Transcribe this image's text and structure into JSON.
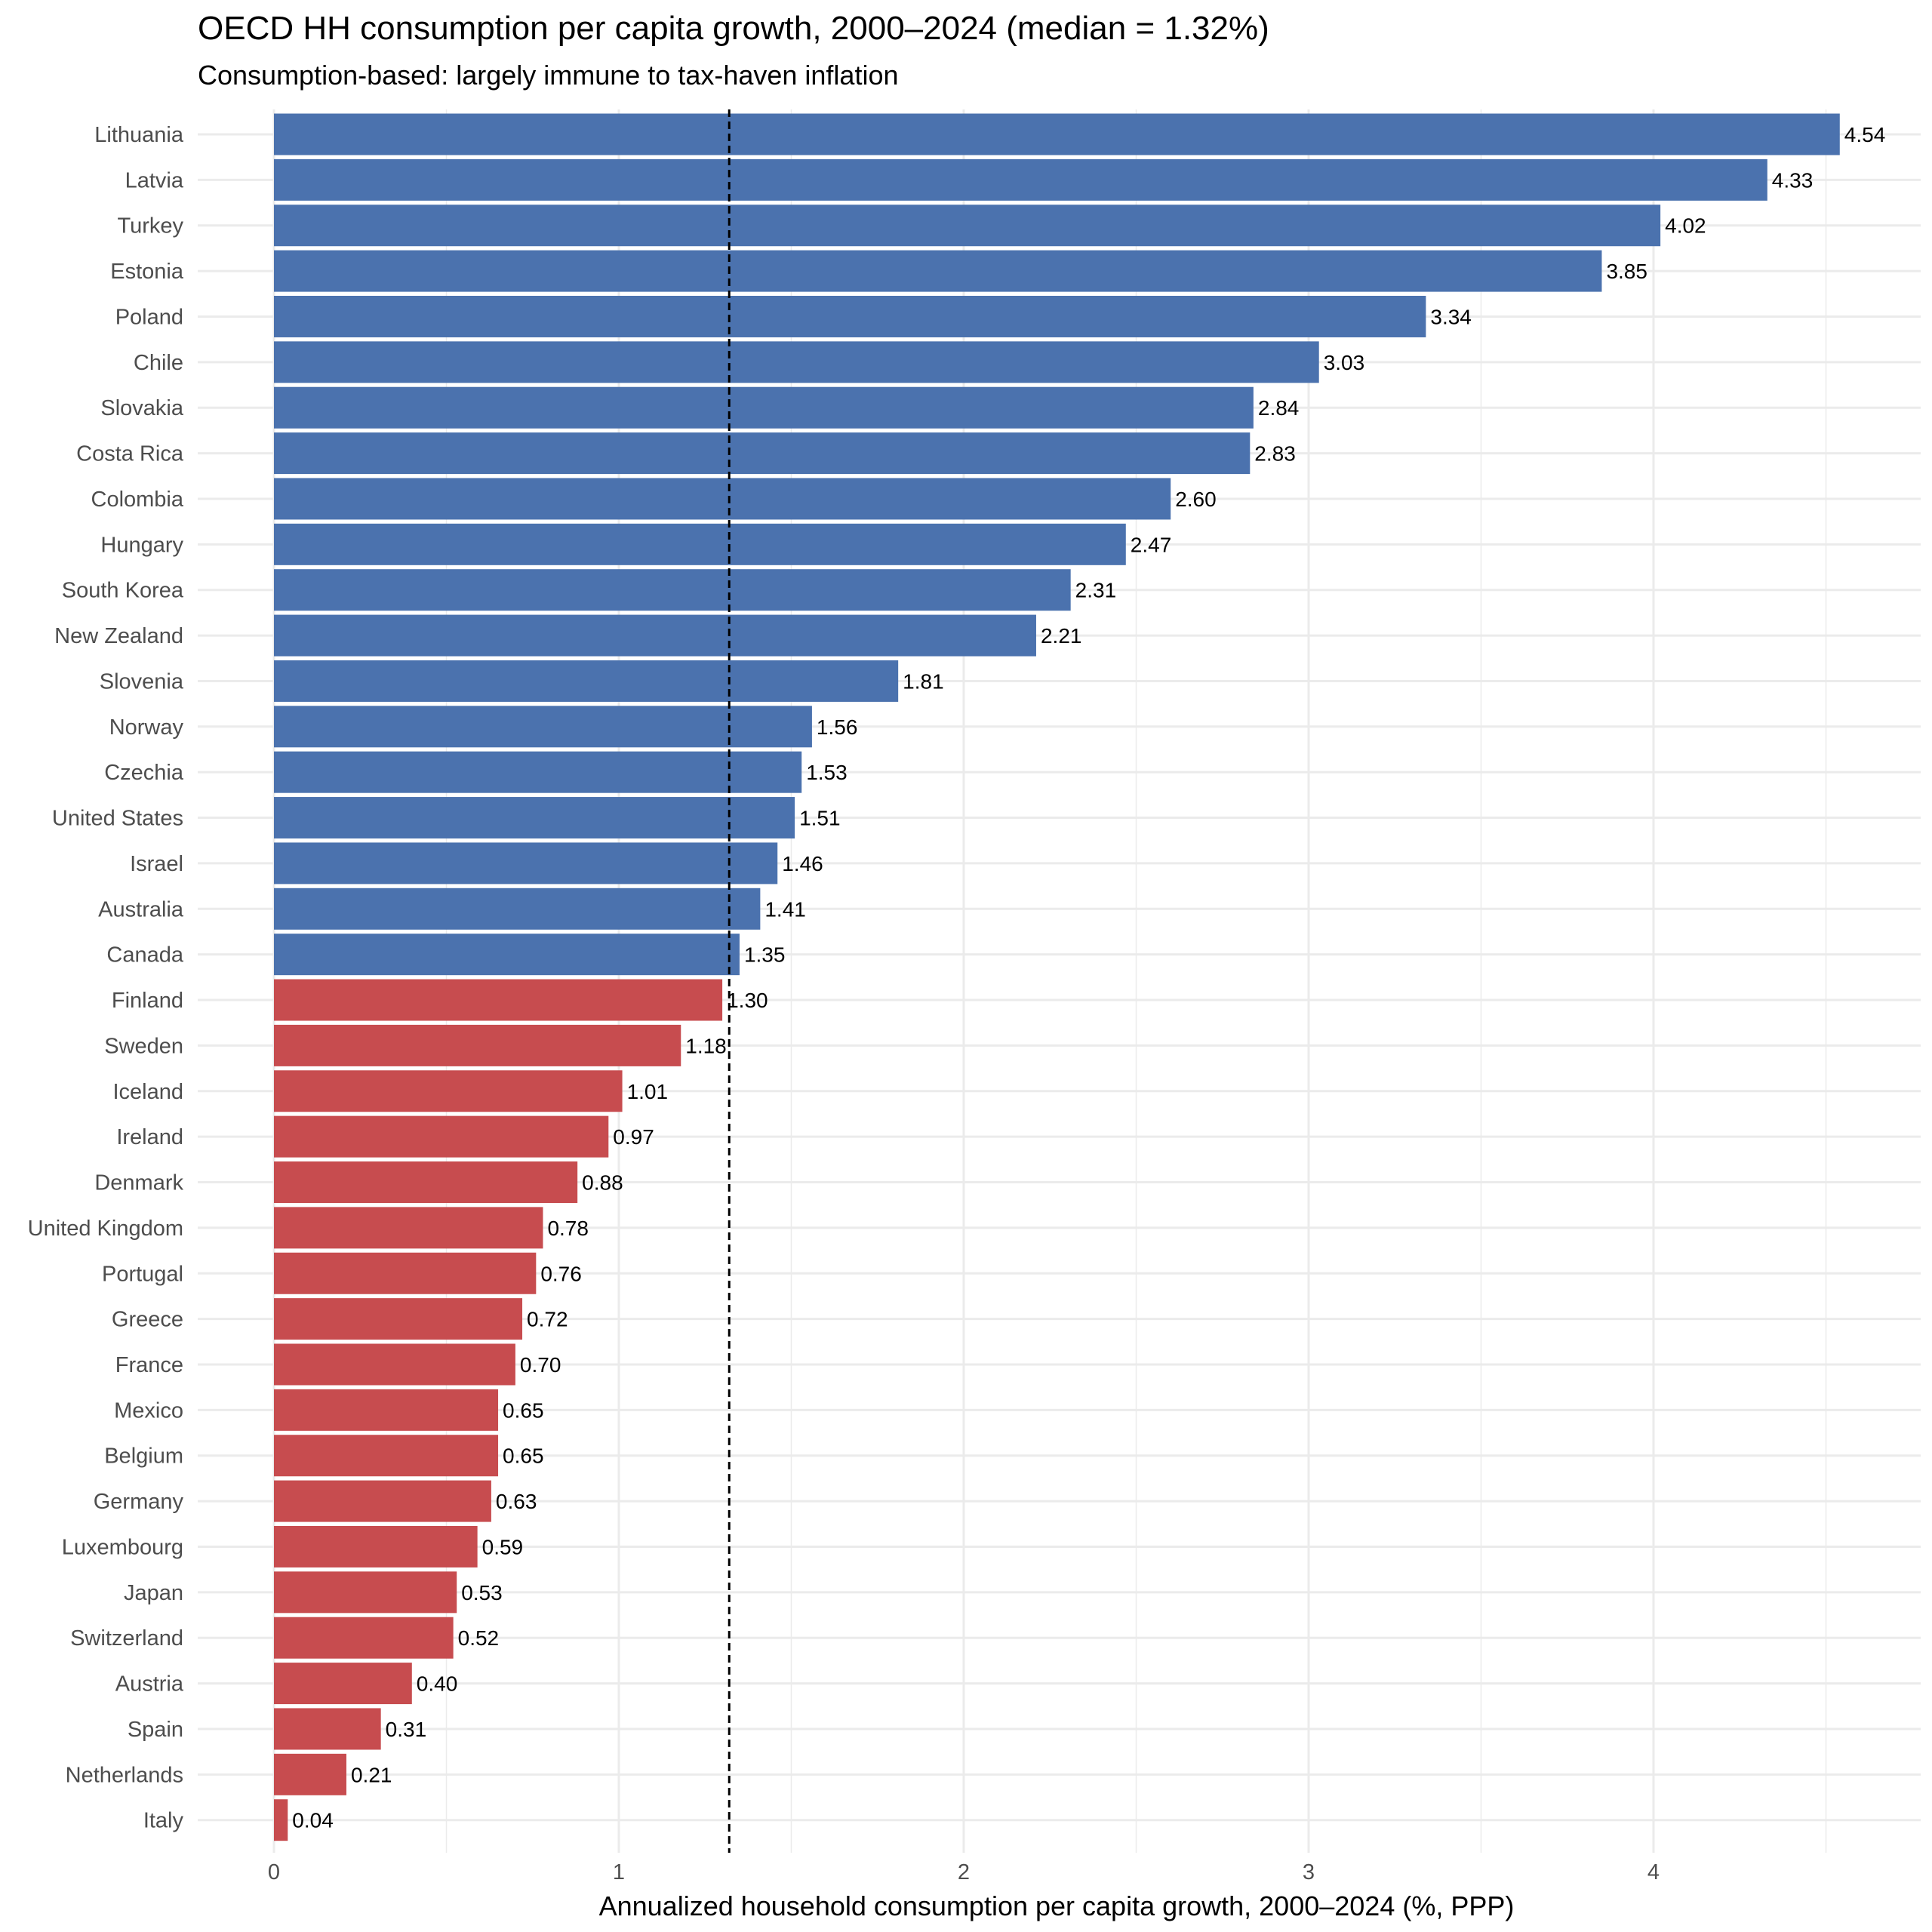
{
  "chart_data": {
    "type": "bar",
    "orientation": "horizontal",
    "title": "OECD HH consumption per capita growth, 2000–2024 (median = 1.32%)",
    "subtitle": "Consumption-based: largely immune to tax-haven inflation",
    "xlabel": "Annualized household consumption per capita growth, 2000–2024 (%, PPP)",
    "ylabel": "",
    "xlim": [
      0,
      4.85
    ],
    "x_ticks": [
      "0",
      "1",
      "2",
      "3",
      "4"
    ],
    "median": 1.32,
    "grid": true,
    "colors": {
      "above_median": "#4b72ae",
      "below_median": "#c74c4f",
      "median_line": "#000000"
    },
    "categories": [
      "Lithuania",
      "Latvia",
      "Turkey",
      "Estonia",
      "Poland",
      "Chile",
      "Slovakia",
      "Costa Rica",
      "Colombia",
      "Hungary",
      "South Korea",
      "New Zealand",
      "Slovenia",
      "Norway",
      "Czechia",
      "United States",
      "Israel",
      "Australia",
      "Canada",
      "Finland",
      "Sweden",
      "Iceland",
      "Ireland",
      "Denmark",
      "United Kingdom",
      "Portugal",
      "Greece",
      "France",
      "Mexico",
      "Belgium",
      "Germany",
      "Luxembourg",
      "Japan",
      "Switzerland",
      "Austria",
      "Spain",
      "Netherlands",
      "Italy"
    ],
    "values": [
      4.54,
      4.33,
      4.02,
      3.85,
      3.34,
      3.03,
      2.84,
      2.83,
      2.6,
      2.47,
      2.31,
      2.21,
      1.81,
      1.56,
      1.53,
      1.51,
      1.46,
      1.41,
      1.35,
      1.3,
      1.18,
      1.01,
      0.97,
      0.88,
      0.78,
      0.76,
      0.72,
      0.7,
      0.65,
      0.65,
      0.63,
      0.59,
      0.53,
      0.52,
      0.4,
      0.31,
      0.21,
      0.04
    ],
    "value_labels": [
      "4.54",
      "4.33",
      "4.02",
      "3.85",
      "3.34",
      "3.03",
      "2.84",
      "2.83",
      "2.60",
      "2.47",
      "2.31",
      "2.21",
      "1.81",
      "1.56",
      "1.53",
      "1.51",
      "1.46",
      "1.41",
      "1.35",
      "1.30",
      "1.18",
      "1.01",
      "0.97",
      "0.88",
      "0.78",
      "0.76",
      "0.72",
      "0.70",
      "0.65",
      "0.65",
      "0.63",
      "0.59",
      "0.53",
      "0.52",
      "0.40",
      "0.31",
      "0.21",
      "0.04"
    ]
  }
}
